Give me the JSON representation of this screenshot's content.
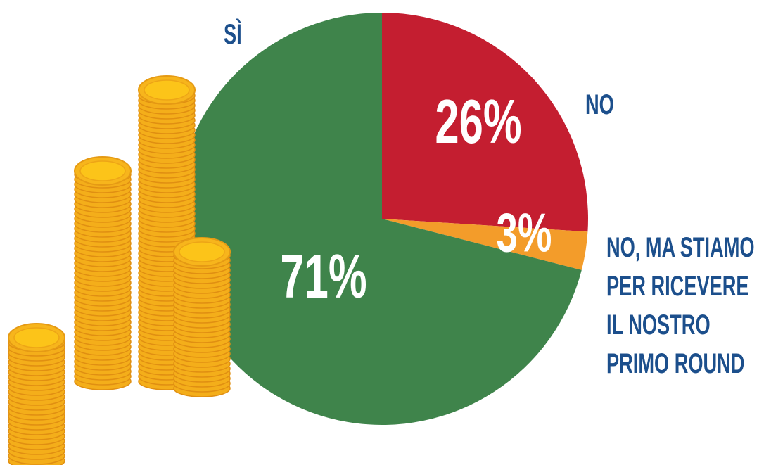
{
  "chart_data": {
    "type": "pie",
    "categories": [
      "NO",
      "NO, MA STIAMO PER RICEVERE IL NOSTRO PRIMO ROUND",
      "SÌ"
    ],
    "values": [
      26,
      3,
      71
    ],
    "value_labels": [
      "26%",
      "3%",
      "71%"
    ],
    "colors": [
      "#c41e30",
      "#f39c2a",
      "#3f844b"
    ]
  }
}
